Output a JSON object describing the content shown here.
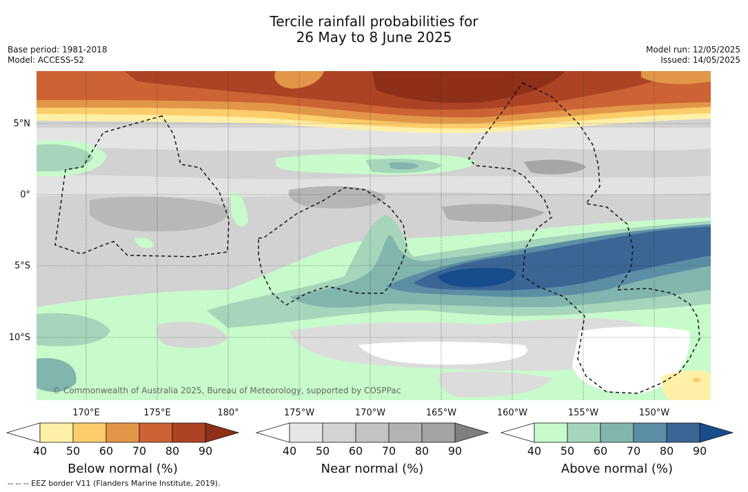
{
  "title_line1": "Tercile rainfall probabilities for",
  "title_line2": "26 May to 8 June 2025",
  "base_period": "Base period: 1981-2018",
  "model": "Model: ACCESS-S2",
  "model_run": "Model run: 12/05/2025",
  "issued": "Issued: 14/05/2025",
  "copyright": "© Commonwealth of Australia 2025, Bureau of Meteorology, supported by COSPPac",
  "footnote": "--  --  -- EEZ border V11 (Flanders Marine Institute, 2019).",
  "lat_labels": [
    "5°N",
    "0°",
    "5°S",
    "10°S"
  ],
  "lon_labels": [
    "170°E",
    "175°E",
    "180°",
    "175°W",
    "170°W",
    "165°W",
    "160°W",
    "155°W",
    "150°W"
  ],
  "colorbars": [
    {
      "title": "Below normal (%)",
      "ticks": [
        "40",
        "50",
        "60",
        "70",
        "80",
        "90"
      ],
      "colors": [
        "#ffffff",
        "#fff0a8",
        "#fdcd6b",
        "#e29748",
        "#cd6234",
        "#ad4324",
        "#8e2f1a"
      ]
    },
    {
      "title": "Near normal (%)",
      "ticks": [
        "40",
        "50",
        "60",
        "70",
        "80",
        "90"
      ],
      "colors": [
        "#ffffff",
        "#e6e6e6",
        "#d4d4d4",
        "#c4c4c4",
        "#b3b3b3",
        "#a3a3a3",
        "#808080"
      ]
    },
    {
      "title": "Above normal (%)",
      "ticks": [
        "40",
        "50",
        "60",
        "70",
        "80",
        "90"
      ],
      "colors": [
        "#ffffff",
        "#c7fbcb",
        "#a5d6bb",
        "#82b5ad",
        "#5b8ea5",
        "#3a6595",
        "#174d8c"
      ]
    }
  ]
}
